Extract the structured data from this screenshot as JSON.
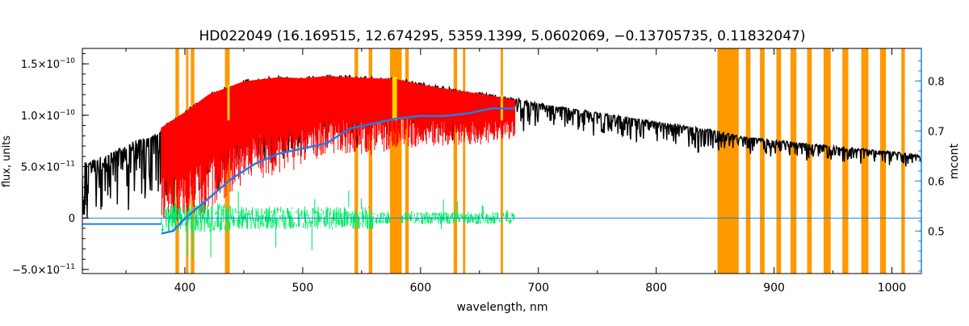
{
  "chart_data": {
    "type": "line",
    "title": "HD022049    (16.169515, 12.674295, 5359.1399, 5.0602069, −0.13705735, 0.11832047)",
    "xlabel": "wavelength, nm",
    "ylabel": "flux, units",
    "y2label": "mcont",
    "xlim": [
      313,
      1025
    ],
    "ylim": [
      -5.4e-11,
      1.65e-10
    ],
    "y2lim": [
      0.415,
      0.865
    ],
    "x_ticks": [
      400,
      500,
      600,
      700,
      800,
      900,
      1000
    ],
    "x_tick_labels": [
      "400",
      "500",
      "600",
      "700",
      "800",
      "900",
      "1000"
    ],
    "y_ticks": [
      -5e-11,
      0,
      5e-11,
      1e-10,
      1.5e-10
    ],
    "y_tick_labels": [
      {
        "mant": "−5.0×10",
        "exp": "−11"
      },
      {
        "mant": "0",
        "exp": ""
      },
      {
        "mant": "5.0×10",
        "exp": "−11"
      },
      {
        "mant": "1.0×10",
        "exp": "−10"
      },
      {
        "mant": "1.5×10",
        "exp": "−10"
      }
    ],
    "y2_ticks": [
      0.5,
      0.6,
      0.7,
      0.8
    ],
    "y2_tick_labels": [
      "0.5",
      "0.6",
      "0.7",
      "0.8"
    ],
    "colors": {
      "observed": "#000000",
      "model": "#ff0000",
      "residual": "#00ee66",
      "continuum": "#1a80e6",
      "masked": "#ff9900",
      "highlight": "#ffee00"
    },
    "observed_envelope": {
      "x": [
        313,
        340,
        360,
        378,
        380,
        400,
        420,
        450,
        480,
        500,
        520,
        540,
        560,
        580,
        600,
        620,
        650,
        680,
        700,
        750,
        800,
        853,
        870,
        900,
        950,
        1000,
        1025
      ],
      "top": [
        5.3e-11,
        6.6e-11,
        7.7e-11,
        8.2e-11,
        9e-11,
        1.05e-10,
        1.22e-10,
        1.35e-10,
        1.39e-10,
        1.38e-10,
        1.4e-10,
        1.39e-10,
        1.38e-10,
        1.37e-10,
        1.32e-10,
        1.28e-10,
        1.23e-10,
        1.17e-10,
        1.12e-10,
        1.03e-10,
        9.4e-11,
        8.5e-11,
        8e-11,
        7.6e-11,
        7e-11,
        6.5e-11,
        6.1e-11
      ],
      "depth": [
        5e-11,
        5.5e-11,
        5.8e-11,
        6e-11,
        7e-11,
        9e-11,
        9e-11,
        8e-11,
        7.5e-11,
        7e-11,
        6e-11,
        6e-11,
        6e-11,
        5.5e-11,
        5e-11,
        4.5e-11,
        4e-11,
        3e-11,
        2e-11,
        2e-11,
        2e-11,
        2e-11,
        1.5e-11,
        1.5e-11,
        1.5e-11,
        1.3e-11,
        1.2e-11
      ]
    },
    "model_range": [
      380,
      680
    ],
    "residual_range": [
      380,
      680
    ],
    "residual_spread": 2.2e-11,
    "continuum_curve": {
      "x": [
        380,
        390,
        400,
        420,
        440,
        460,
        480,
        500,
        520,
        540,
        560,
        580,
        600,
        620,
        640,
        660,
        680
      ],
      "y": [
        0.495,
        0.5,
        0.525,
        0.565,
        0.605,
        0.635,
        0.655,
        0.665,
        0.675,
        0.705,
        0.715,
        0.725,
        0.73,
        0.73,
        0.735,
        0.745,
        0.745
      ]
    },
    "continuum_baseline": 0.514,
    "masked_bands": [
      [
        392,
        395
      ],
      [
        401,
        403
      ],
      [
        405,
        408
      ],
      [
        434,
        438
      ],
      [
        544,
        547
      ],
      [
        556,
        559
      ],
      [
        574,
        584
      ],
      [
        587,
        590
      ],
      [
        628,
        631
      ],
      [
        636,
        638
      ],
      [
        668,
        670
      ],
      [
        852,
        870
      ],
      [
        876,
        880
      ],
      [
        888,
        892
      ],
      [
        902,
        906
      ],
      [
        914,
        919
      ],
      [
        928,
        932
      ],
      [
        942,
        948
      ],
      [
        958,
        963
      ],
      [
        974,
        980
      ],
      [
        990,
        995
      ],
      [
        1008,
        1011
      ]
    ],
    "highlight_bands": [
      [
        576,
        580
      ],
      [
        436,
        438
      ],
      [
        668,
        670
      ]
    ]
  }
}
